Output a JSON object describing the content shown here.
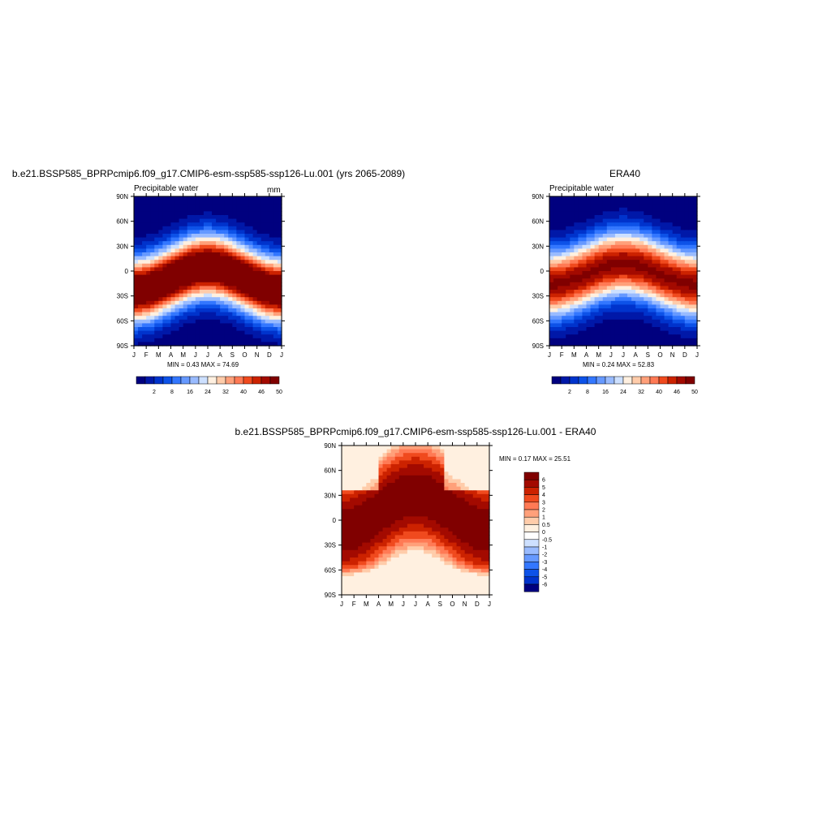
{
  "chart_data": [
    {
      "type": "heatmap",
      "title": "b.e21.BSSP585_BPRPcmip6.f09_g17.CMIP6-esm-ssp585-ssp126-Lu.001 (yrs 2065-2089)",
      "left_string": "Precipitable water",
      "right_string": "mm",
      "y_tick_labels": [
        "90N",
        "60N",
        "30N",
        "0",
        "30S",
        "60S",
        "90S"
      ],
      "x_tick_labels": [
        "J",
        "F",
        "M",
        "A",
        "M",
        "J",
        "J",
        "A",
        "S",
        "O",
        "N",
        "D",
        "J"
      ],
      "stats": "MIN =   0.43 MAX =  74.69",
      "min": 0.43,
      "max": 74.69,
      "levels_labels": [
        "2",
        "8",
        "16",
        "24",
        "32",
        "40",
        "46",
        "50"
      ],
      "colors": [
        "#00007f",
        "#0018a8",
        "#0033cc",
        "#0d52e8",
        "#3377ff",
        "#6699ff",
        "#99bbff",
        "#cde0ff",
        "#fff0e0",
        "#ffccaa",
        "#ffa07a",
        "#ff7a55",
        "#f04a1e",
        "#cc2200",
        "#a30a00",
        "#800000"
      ]
    },
    {
      "type": "heatmap",
      "title": "ERA40",
      "left_string": "Precipitable water",
      "y_tick_labels": [
        "90N",
        "60N",
        "30N",
        "0",
        "30S",
        "60S",
        "90S"
      ],
      "x_tick_labels": [
        "J",
        "F",
        "M",
        "A",
        "M",
        "J",
        "J",
        "A",
        "S",
        "O",
        "N",
        "D",
        "J"
      ],
      "stats": "MIN =   0.24 MAX =  52.83",
      "min": 0.24,
      "max": 52.83,
      "levels_labels": [
        "2",
        "8",
        "16",
        "24",
        "32",
        "40",
        "46",
        "50"
      ],
      "colors": [
        "#00007f",
        "#0018a8",
        "#0033cc",
        "#0d52e8",
        "#3377ff",
        "#6699ff",
        "#99bbff",
        "#cde0ff",
        "#fff0e0",
        "#ffccaa",
        "#ffa07a",
        "#ff7a55",
        "#f04a1e",
        "#cc2200",
        "#a30a00",
        "#800000"
      ]
    },
    {
      "type": "heatmap",
      "title": "b.e21.BSSP585_BPRPcmip6.f09_g17.CMIP6-esm-ssp585-ssp126-Lu.001 - ERA40",
      "y_tick_labels": [
        "90N",
        "60N",
        "30N",
        "0",
        "30S",
        "60S",
        "90S"
      ],
      "x_tick_labels": [
        "J",
        "F",
        "M",
        "A",
        "M",
        "J",
        "J",
        "A",
        "S",
        "O",
        "N",
        "D",
        "J"
      ],
      "stats": "MIN =   0.17 MAX =  25.51",
      "min": 0.17,
      "max": 25.51,
      "levels_labels": [
        "6",
        "5",
        "4",
        "3",
        "2",
        "1",
        "0.5",
        "0",
        "-0.5",
        "-1",
        "-2",
        "-3",
        "-4",
        "-5",
        "-6"
      ],
      "colors": [
        "#800000",
        "#a30a00",
        "#cc2200",
        "#f04a1e",
        "#ff7a55",
        "#ffa07a",
        "#ffccaa",
        "#fff0e0",
        "#ffffff",
        "#cde0ff",
        "#99bbff",
        "#6699ff",
        "#3377ff",
        "#0d52e8",
        "#0033cc",
        "#00007f"
      ]
    }
  ]
}
